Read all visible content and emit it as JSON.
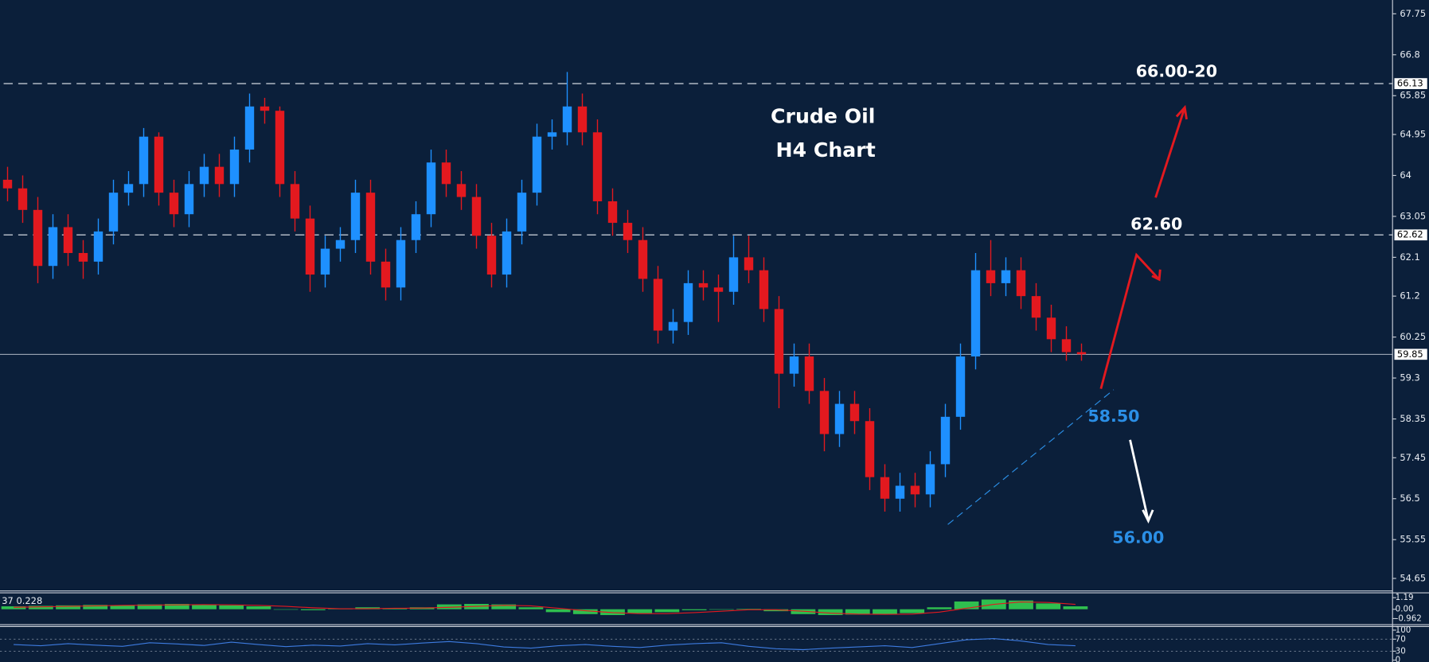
{
  "chart_data": [
    {
      "type": "candlestick",
      "annotations": [
        "Crude Oil",
        "H4 Chart",
        "66.00-20",
        "62.60",
        "58.50",
        "56.00"
      ],
      "open": [
        63.9,
        63.7,
        63.2,
        61.9,
        62.8,
        62.2,
        62.0,
        62.7,
        63.6,
        63.8,
        64.9,
        63.6,
        63.1,
        63.8,
        64.2,
        63.8,
        64.6,
        65.6,
        65.5,
        63.8,
        63.0,
        61.7,
        62.3,
        62.5,
        63.6,
        62.0,
        61.4,
        62.5,
        63.1,
        64.3,
        63.8,
        63.5,
        62.6,
        61.7,
        62.7,
        63.6,
        64.9,
        65.0,
        65.6,
        65.0,
        63.4,
        62.9,
        62.5,
        61.6,
        60.4,
        60.6,
        61.5,
        61.4,
        61.3,
        62.1,
        61.8,
        60.9,
        59.4,
        59.8,
        59.0,
        58.0,
        58.7,
        58.3,
        57.0,
        56.5,
        56.8,
        56.6,
        57.3,
        58.4,
        59.8,
        61.8,
        61.5,
        61.8,
        61.2,
        60.7,
        60.2,
        59.9
      ],
      "high": [
        64.2,
        64.0,
        63.5,
        63.1,
        63.1,
        62.5,
        63.0,
        63.9,
        64.1,
        65.1,
        65.0,
        63.9,
        64.1,
        64.5,
        64.5,
        64.9,
        65.9,
        65.8,
        65.6,
        64.1,
        63.3,
        62.6,
        62.8,
        63.9,
        63.9,
        62.3,
        62.8,
        63.4,
        64.6,
        64.6,
        64.1,
        63.8,
        62.9,
        63.0,
        63.9,
        65.2,
        65.3,
        66.4,
        65.9,
        65.3,
        63.7,
        63.2,
        62.8,
        61.9,
        60.9,
        61.8,
        61.8,
        61.7,
        62.6,
        62.6,
        62.1,
        61.2,
        60.1,
        60.1,
        59.3,
        59.0,
        59.0,
        58.6,
        57.3,
        57.1,
        57.1,
        57.6,
        58.7,
        60.1,
        62.2,
        62.5,
        62.1,
        62.1,
        61.5,
        61.0,
        60.5,
        60.1
      ],
      "low": [
        63.4,
        62.9,
        61.5,
        61.6,
        61.9,
        61.6,
        61.7,
        62.4,
        63.3,
        63.5,
        63.3,
        62.8,
        62.8,
        63.5,
        63.5,
        63.5,
        64.3,
        65.2,
        63.5,
        62.7,
        61.3,
        61.4,
        62.0,
        62.2,
        61.7,
        61.1,
        61.1,
        62.2,
        62.8,
        63.5,
        63.2,
        62.3,
        61.4,
        61.4,
        62.4,
        63.3,
        64.6,
        64.7,
        64.7,
        63.1,
        62.6,
        62.2,
        61.3,
        60.1,
        60.1,
        60.3,
        61.1,
        60.6,
        61.0,
        61.5,
        60.6,
        58.6,
        59.1,
        58.7,
        57.6,
        57.7,
        58.0,
        56.7,
        56.2,
        56.2,
        56.3,
        56.3,
        57.0,
        58.1,
        59.5,
        61.2,
        61.2,
        60.9,
        60.4,
        59.9,
        59.7,
        59.7
      ],
      "close": [
        63.7,
        63.2,
        61.9,
        62.8,
        62.2,
        62.0,
        62.7,
        63.6,
        63.8,
        64.9,
        63.6,
        63.1,
        63.8,
        64.2,
        63.8,
        64.6,
        65.6,
        65.5,
        63.8,
        63.0,
        61.7,
        62.3,
        62.5,
        63.6,
        62.0,
        61.4,
        62.5,
        63.1,
        64.3,
        63.8,
        63.5,
        62.6,
        61.7,
        62.7,
        63.6,
        64.9,
        65.0,
        65.6,
        65.0,
        63.4,
        62.9,
        62.5,
        61.6,
        60.4,
        60.6,
        61.5,
        61.4,
        61.3,
        62.1,
        61.8,
        60.9,
        59.4,
        59.8,
        59.0,
        58.0,
        58.7,
        58.3,
        57.0,
        56.5,
        56.8,
        56.6,
        57.3,
        58.4,
        59.8,
        61.8,
        61.5,
        61.8,
        61.2,
        60.7,
        60.2,
        59.9,
        59.85
      ],
      "up_color": "#1e90ff",
      "down_color": "#e3191f",
      "price_lines": [
        66.13,
        62.62
      ],
      "current_price": 59.85,
      "ylim": [
        54.38,
        68.07
      ],
      "yticks": [
        67.75,
        66.8,
        65.85,
        64.95,
        64.0,
        63.05,
        62.1,
        61.2,
        60.25,
        59.3,
        58.35,
        57.45,
        56.5,
        55.55,
        54.65
      ]
    },
    {
      "type": "macd",
      "label": "37 0.228",
      "histogram": [
        0.3,
        0.35,
        0.4,
        0.45,
        0.4,
        0.5,
        0.55,
        0.45,
        0.4,
        0.3,
        0.0,
        -0.1,
        0.05,
        0.2,
        0.1,
        0.2,
        0.5,
        0.55,
        0.5,
        0.2,
        -0.3,
        -0.5,
        -0.6,
        -0.4,
        -0.3,
        -0.1,
        0.0,
        0.05,
        -0.2,
        -0.5,
        -0.6,
        -0.55,
        -0.5,
        -0.4,
        0.2,
        0.8,
        1.0,
        0.9,
        0.6,
        0.3
      ],
      "signal": [
        0.2,
        0.25,
        0.3,
        0.35,
        0.4,
        0.42,
        0.45,
        0.47,
        0.45,
        0.4,
        0.3,
        0.15,
        0.05,
        0.05,
        0.1,
        0.12,
        0.2,
        0.3,
        0.4,
        0.35,
        0.1,
        -0.15,
        -0.35,
        -0.45,
        -0.45,
        -0.35,
        -0.2,
        -0.05,
        -0.05,
        -0.2,
        -0.4,
        -0.5,
        -0.52,
        -0.5,
        -0.3,
        0.1,
        0.5,
        0.75,
        0.7,
        0.5
      ],
      "bar_color": "#2fbf4f",
      "signal_color": "#e3191f",
      "ylim": [
        -1.4,
        1.6
      ],
      "yticks": [
        1.19,
        {
          "value": 0,
          "label": "0.00"
        },
        -0.962
      ]
    },
    {
      "type": "rsi",
      "values": [
        52,
        48,
        55,
        50,
        46,
        58,
        54,
        49,
        60,
        52,
        45,
        50,
        47,
        55,
        51,
        57,
        62,
        55,
        44,
        40,
        48,
        52,
        46,
        42,
        50,
        55,
        58,
        46,
        38,
        35,
        40,
        44,
        48,
        42,
        55,
        68,
        72,
        64,
        52,
        48
      ],
      "color": "#3d7be0",
      "ylim": [
        0,
        100
      ],
      "yticks": [
        100,
        70,
        30,
        0
      ]
    }
  ]
}
